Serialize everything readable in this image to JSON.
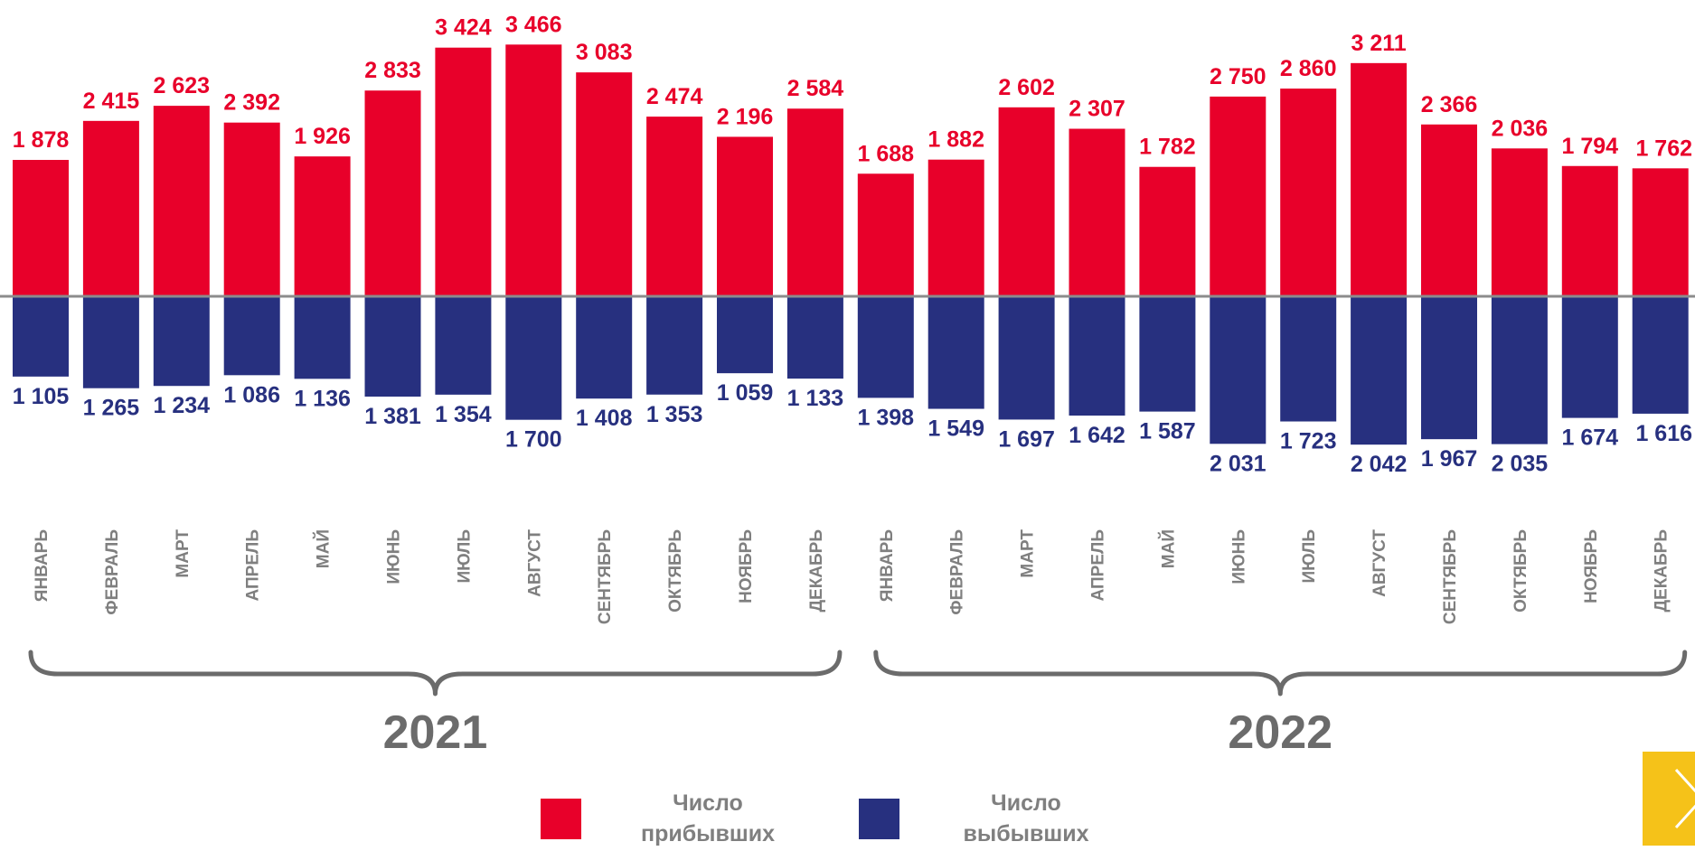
{
  "chart_data": {
    "type": "bar",
    "categories": [
      "ЯНВАРЬ",
      "ФЕВРАЛЬ",
      "МАРТ",
      "АПРЕЛЬ",
      "МАЙ",
      "ИЮНЬ",
      "ИЮЛЬ",
      "АВГУСТ",
      "СЕНТЯБРЬ",
      "ОКТЯБРЬ",
      "НОЯБРЬ",
      "ДЕКАБРЬ",
      "ЯНВАРЬ",
      "ФЕВРАЛЬ",
      "МАРТ",
      "АПРЕЛЬ",
      "МАЙ",
      "ИЮНЬ",
      "ИЮЛЬ",
      "АВГУСТ",
      "СЕНТЯБРЬ",
      "ОКТЯБРЬ",
      "НОЯБРЬ",
      "ДЕКАБРЬ"
    ],
    "groups": [
      {
        "label": "2021",
        "from": 0,
        "to": 11
      },
      {
        "label": "2022",
        "from": 12,
        "to": 23
      }
    ],
    "series": [
      {
        "name": "Число прибывших",
        "color": "#e8002a",
        "direction": "up",
        "values": [
          1878,
          2415,
          2623,
          2392,
          1926,
          2833,
          3424,
          3466,
          3083,
          2474,
          2196,
          2584,
          1688,
          1882,
          2602,
          2307,
          1782,
          2750,
          2860,
          3211,
          2366,
          2036,
          1794,
          1762
        ],
        "labels": [
          "1 878",
          "2 415",
          "2 623",
          "2 392",
          "1 926",
          "2 833",
          "3 424",
          "3 466",
          "3 083",
          "2 474",
          "2 196",
          "2 584",
          "1 688",
          "1 882",
          "2 602",
          "2 307",
          "1 782",
          "2 750",
          "2 860",
          "3 211",
          "2 366",
          "2 036",
          "1 794",
          "1 762"
        ]
      },
      {
        "name": "Число выбывших",
        "color": "#27307f",
        "direction": "down",
        "values": [
          1105,
          1265,
          1234,
          1086,
          1136,
          1381,
          1354,
          1700,
          1408,
          1353,
          1059,
          1133,
          1398,
          1549,
          1697,
          1642,
          1587,
          2031,
          1723,
          2042,
          1967,
          2035,
          1674,
          1616
        ],
        "labels": [
          "1 105",
          "1 265",
          "1 234",
          "1 086",
          "1 136",
          "1 381",
          "1 354",
          "1 700",
          "1 408",
          "1 353",
          "1 059",
          "1 133",
          "1 398",
          "1 549",
          "1 697",
          "1 642",
          "1 587",
          "2 031",
          "1 723",
          "2 042",
          "1 967",
          "2 035",
          "1 674",
          "1 616"
        ]
      }
    ],
    "legend": [
      {
        "line1": "Число",
        "line2": "прибывших",
        "color": "#e8002a"
      },
      {
        "line1": "Число",
        "line2": "выбывших",
        "color": "#27307f"
      }
    ],
    "axis_color": "#8c8c8c",
    "next_button": {
      "icon": "chevron-right-icon",
      "color": "#f5c219"
    }
  }
}
